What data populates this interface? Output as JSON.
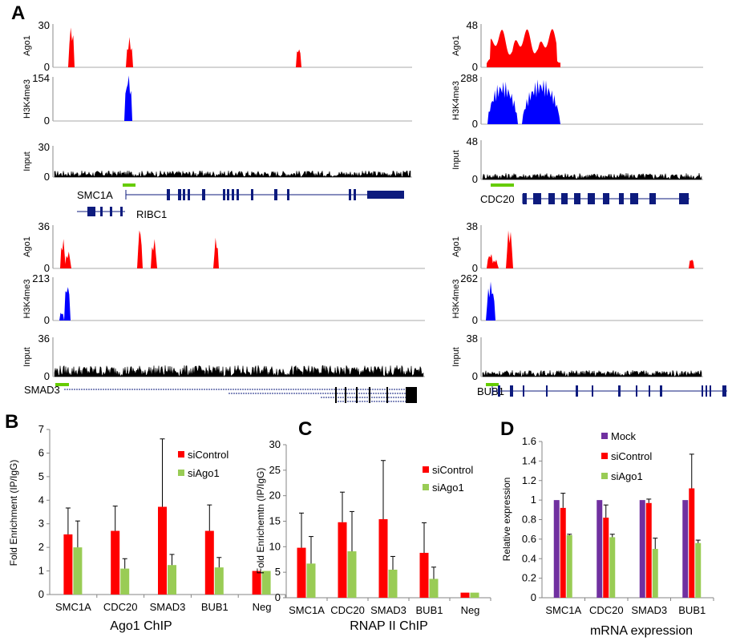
{
  "panels": {
    "A": "A",
    "B": "B",
    "C": "C",
    "D": "D"
  },
  "colors": {
    "Ago1": "#ff0000",
    "H3K4me3": "#0000ff",
    "Input": "#000000",
    "gene": "#0d1b7e",
    "tss": "#66cc00",
    "siControl": "#ff0000",
    "siAgo1": "#99cc55",
    "Mock": "#7030a0"
  },
  "tracks_panel": {
    "blocks": [
      {
        "id": "smc1a",
        "tracks": [
          {
            "label": "Ago1",
            "max": "30",
            "min": "0"
          },
          {
            "label": "H3K4me3",
            "max": "154",
            "min": "0"
          },
          {
            "label": "Input",
            "max": "30",
            "min": "0"
          }
        ],
        "genes": [
          "SMC1A",
          "RIBC1"
        ]
      },
      {
        "id": "cdc20",
        "tracks": [
          {
            "label": "Ago1",
            "max": "48",
            "min": "0"
          },
          {
            "label": "H3K4me3",
            "max": "288",
            "min": "0"
          },
          {
            "label": "Input",
            "max": "48",
            "min": "0"
          }
        ],
        "genes": [
          "CDC20"
        ]
      },
      {
        "id": "smad3",
        "tracks": [
          {
            "label": "Ago1",
            "max": "36",
            "min": "0"
          },
          {
            "label": "H3K4me3",
            "max": "213",
            "min": "0"
          },
          {
            "label": "Input",
            "max": "36",
            "min": "0"
          }
        ],
        "genes": [
          "SMAD3"
        ]
      },
      {
        "id": "bub1",
        "tracks": [
          {
            "label": "Ago1",
            "max": "38",
            "min": "0"
          },
          {
            "label": "H3K4me3",
            "max": "262",
            "min": "0"
          },
          {
            "label": "Input",
            "max": "38",
            "min": "0"
          }
        ],
        "genes": [
          "BUB1"
        ]
      }
    ]
  },
  "chart_data": [
    {
      "panel": "B",
      "type": "bar",
      "title": "Ago1 ChIP",
      "ylabel": "Fold Enrichment (IP/IgG)",
      "categories": [
        "SMC1A",
        "CDC20",
        "SMAD3",
        "BUB1",
        "Neg"
      ],
      "ylim": [
        0,
        7
      ],
      "yticks": [
        "0",
        "1",
        "2",
        "3",
        "4",
        "5",
        "6",
        "7"
      ],
      "series": [
        {
          "name": "siControl",
          "values": [
            2.55,
            2.7,
            3.72,
            2.7,
            1.0
          ],
          "errors": [
            1.12,
            1.05,
            2.88,
            1.1,
            0
          ]
        },
        {
          "name": "siAgo1",
          "values": [
            2.0,
            1.1,
            1.25,
            1.15,
            1.0
          ],
          "errors": [
            1.12,
            0.42,
            0.45,
            0.42,
            0
          ]
        }
      ],
      "legend_position": "top-right"
    },
    {
      "panel": "C",
      "type": "bar",
      "title": "RNAP II ChIP",
      "ylabel": "Fold Enrichemtn (IP/IgG)",
      "categories": [
        "SMC1A",
        "CDC20",
        "SMAD3",
        "BUB1",
        "Neg"
      ],
      "ylim": [
        0,
        30
      ],
      "yticks": [
        "0",
        "5",
        "10",
        "15",
        "20",
        "25",
        "30"
      ],
      "series": [
        {
          "name": "siControl",
          "values": [
            9.8,
            14.8,
            15.4,
            8.8,
            1.0
          ],
          "errors": [
            6.8,
            5.9,
            11.5,
            5.9,
            0
          ]
        },
        {
          "name": "siAgo1",
          "values": [
            6.7,
            9.1,
            5.5,
            3.7,
            1.0
          ],
          "errors": [
            5.3,
            7.8,
            2.6,
            2.3,
            0
          ]
        }
      ],
      "legend_position": "top-right"
    },
    {
      "panel": "D",
      "type": "bar",
      "title": "mRNA expression",
      "ylabel": "Relative expression",
      "categories": [
        "SMC1A",
        "CDC20",
        "SMAD3",
        "BUB1"
      ],
      "ylim": [
        0,
        1.6
      ],
      "yticks": [
        "0",
        "0.2",
        "0.4",
        "0.6",
        "0.8",
        "1",
        "1.2",
        "1.4",
        "1.6"
      ],
      "series": [
        {
          "name": "Mock",
          "values": [
            1.0,
            1.0,
            1.0,
            1.0
          ],
          "errors": [
            0,
            0,
            0,
            0
          ]
        },
        {
          "name": "siControl",
          "values": [
            0.92,
            0.82,
            0.97,
            1.12
          ],
          "errors": [
            0.15,
            0.13,
            0.04,
            0.35
          ]
        },
        {
          "name": "siAgo1",
          "values": [
            0.64,
            0.62,
            0.5,
            0.56
          ],
          "errors": [
            0.01,
            0.03,
            0.11,
            0.03
          ]
        }
      ],
      "legend_position": "top-center"
    }
  ]
}
